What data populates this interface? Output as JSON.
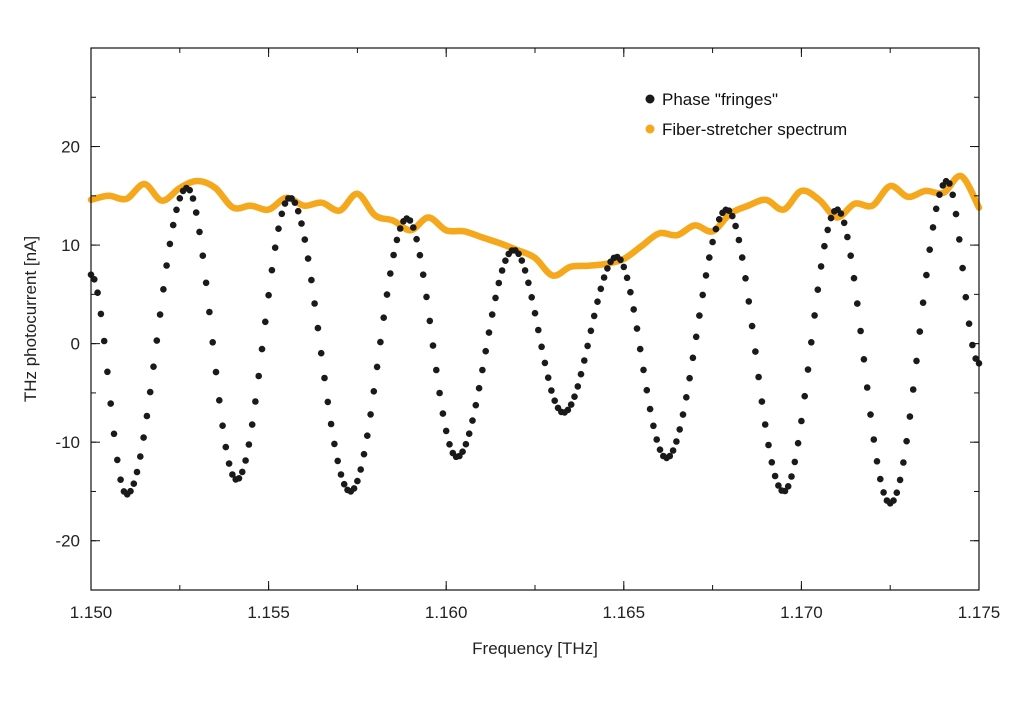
{
  "chart_data": {
    "type": "scatter",
    "title": "",
    "xlabel": "Frequency [THz]",
    "ylabel": "THz photocurrent [nA]",
    "xlim": [
      1.15,
      1.175
    ],
    "ylim": [
      -25,
      30
    ],
    "x_ticks": [
      1.15,
      1.155,
      1.16,
      1.165,
      1.17,
      1.175
    ],
    "x_tick_labels": [
      "1.150",
      "1.155",
      "1.160",
      "1.165",
      "1.170",
      "1.175"
    ],
    "y_ticks": [
      -20,
      -10,
      0,
      10,
      20
    ],
    "y_tick_labels": [
      "-20",
      "-10",
      "0",
      "10",
      "20"
    ],
    "grid": false,
    "legend_position": "top-right",
    "series": [
      {
        "name": "Phase \"fringes\"",
        "style": "dots",
        "color": "#1a1a1a",
        "extrema": [
          {
            "x": 1.15,
            "y": 7
          },
          {
            "x": 1.151,
            "y": -15.3
          },
          {
            "x": 1.1527,
            "y": 15.8
          },
          {
            "x": 1.1541,
            "y": -13.8
          },
          {
            "x": 1.1556,
            "y": 14.8
          },
          {
            "x": 1.1573,
            "y": -15.0
          },
          {
            "x": 1.1589,
            "y": 12.7
          },
          {
            "x": 1.1603,
            "y": -11.5
          },
          {
            "x": 1.1619,
            "y": 9.5
          },
          {
            "x": 1.1633,
            "y": -7.0
          },
          {
            "x": 1.1648,
            "y": 8.8
          },
          {
            "x": 1.1662,
            "y": -11.6
          },
          {
            "x": 1.1679,
            "y": 13.6
          },
          {
            "x": 1.1695,
            "y": -15.0
          },
          {
            "x": 1.171,
            "y": 13.6
          },
          {
            "x": 1.1725,
            "y": -16.2
          },
          {
            "x": 1.1741,
            "y": 16.5
          },
          {
            "x": 1.175,
            "y": -2.0
          }
        ]
      },
      {
        "name": "Fiber-stretcher spectrum",
        "style": "line",
        "color": "#f5a81c",
        "x": [
          1.15,
          1.1505,
          1.151,
          1.1515,
          1.152,
          1.1525,
          1.153,
          1.1535,
          1.154,
          1.1545,
          1.155,
          1.1555,
          1.156,
          1.1565,
          1.157,
          1.1575,
          1.158,
          1.1585,
          1.159,
          1.1595,
          1.16,
          1.1605,
          1.161,
          1.1615,
          1.162,
          1.1625,
          1.163,
          1.1635,
          1.164,
          1.1645,
          1.165,
          1.1655,
          1.166,
          1.1665,
          1.167,
          1.1675,
          1.168,
          1.1685,
          1.169,
          1.1695,
          1.17,
          1.1705,
          1.171,
          1.1715,
          1.172,
          1.1725,
          1.173,
          1.1735,
          1.174,
          1.1745,
          1.175
        ],
        "y": [
          14.6,
          15.0,
          14.7,
          16.2,
          14.5,
          15.8,
          16.5,
          15.8,
          13.8,
          14.0,
          13.6,
          14.8,
          14.0,
          14.3,
          13.5,
          15.2,
          13.0,
          12.5,
          11.5,
          12.8,
          11.5,
          11.4,
          10.8,
          10.2,
          9.5,
          8.7,
          6.9,
          7.8,
          7.9,
          8.1,
          8.6,
          9.9,
          11.2,
          11.0,
          12.0,
          11.4,
          13.2,
          14.0,
          14.6,
          13.6,
          15.5,
          14.6,
          12.8,
          14.2,
          14.0,
          16.0,
          14.9,
          15.5,
          15.3,
          17.0,
          13.8
        ]
      }
    ]
  }
}
